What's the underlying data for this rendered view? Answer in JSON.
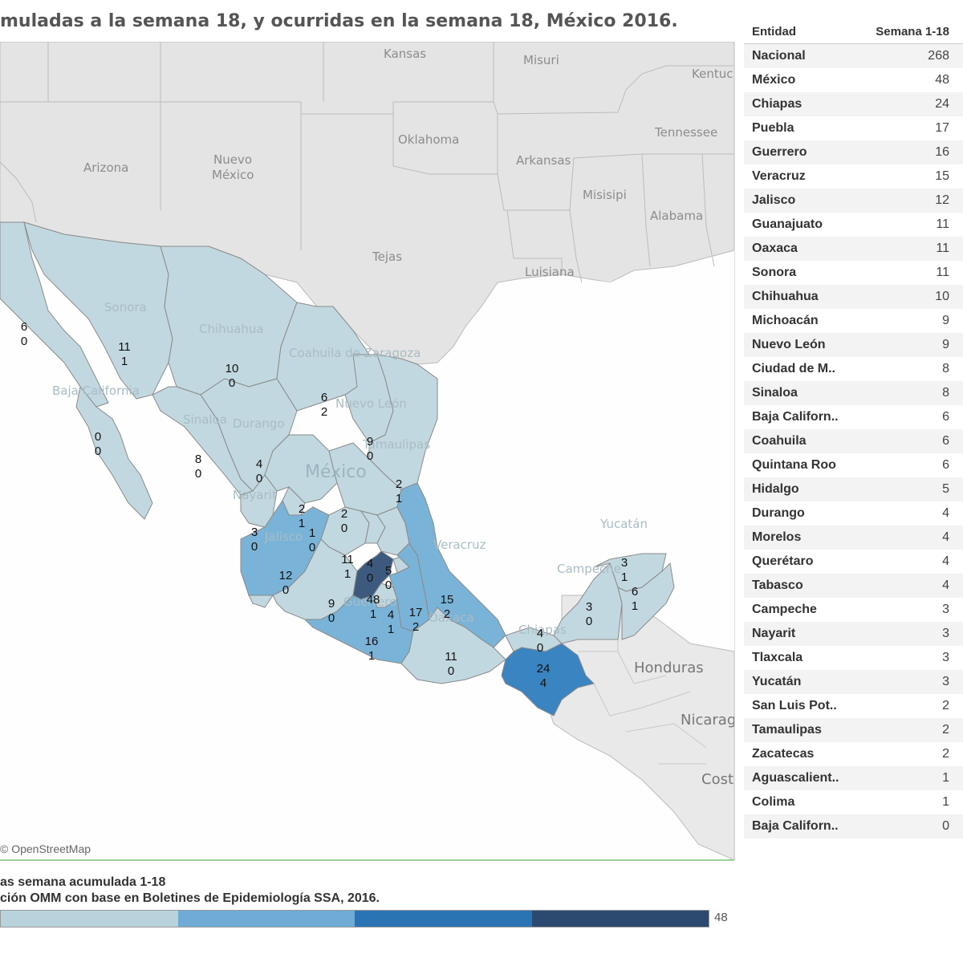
{
  "title": "muladas a la semana 18, y ocurridas en la semana 18, México 2016.",
  "map": {
    "attribution": "© OpenStreetMap",
    "place_labels": {
      "kansas": "Kansas",
      "misuri": "Misuri",
      "kentucky": "Kentuc",
      "oklahoma": "Oklahoma",
      "tennessee": "Tennessee",
      "arkansas": "Arkansas",
      "arizona": "Arizona",
      "nuevo_mexico_1": "Nuevo",
      "nuevo_mexico_2": "México",
      "misisipi": "Misisipi",
      "alabama": "Alabama",
      "tejas": "Tejas",
      "luisiana": "Luisiana",
      "honduras": "Honduras",
      "nicaragua": "Nicarag",
      "costa_rica": "Cost",
      "mexico": "México",
      "baja_california": "Baja California",
      "sonora": "Sonora",
      "chihuahua": "Chihuahua",
      "coahuila": "Coahuila de Zaragoza",
      "nuevo_leon": "Nuevo León",
      "tamaulipas": "Tamaulipas",
      "sinaloa": "Sinaloa",
      "durango": "Durango",
      "nayarit": "Nayarit",
      "jalisco": "Jalisco",
      "guerrero": "Guerrero",
      "oaxaca": "Oaxaca",
      "chiapas": "Chiapas",
      "veracruz": "Veracruz",
      "campeche": "Campeche",
      "yucatan": "Yucatán"
    },
    "state_labels": [
      {
        "state": "Baja California",
        "acc": "6",
        "week": "0"
      },
      {
        "state": "Sonora",
        "acc": "11",
        "week": "1"
      },
      {
        "state": "Chihuahua",
        "acc": "10",
        "week": "0"
      },
      {
        "state": "Coahuila",
        "acc": "6",
        "week": "2"
      },
      {
        "state": "Baja California Sur",
        "acc": "0",
        "week": "0"
      },
      {
        "state": "Nuevo León",
        "acc": "9",
        "week": "0"
      },
      {
        "state": "Sinaloa",
        "acc": "8",
        "week": "0"
      },
      {
        "state": "Durango",
        "acc": "4",
        "week": "0"
      },
      {
        "state": "Tamaulipas",
        "acc": "2",
        "week": "1"
      },
      {
        "state": "Zacatecas",
        "acc": "2",
        "week": "1"
      },
      {
        "state": "San Luis Potosí",
        "acc": "2",
        "week": "0"
      },
      {
        "state": "Aguascalientes",
        "acc": "1",
        "week": "0"
      },
      {
        "state": "Nayarit",
        "acc": "3",
        "week": "0"
      },
      {
        "state": "Guanajuato",
        "acc": "11",
        "week": "1"
      },
      {
        "state": "Querétaro",
        "acc": "4",
        "week": "0"
      },
      {
        "state": "Hidalgo",
        "acc": "5",
        "week": "0"
      },
      {
        "state": "Jalisco",
        "acc": "12",
        "week": "0"
      },
      {
        "state": "México",
        "acc": "48",
        "week": "1"
      },
      {
        "state": "Morelos",
        "acc": "4",
        "week": "1"
      },
      {
        "state": "Puebla",
        "acc": "17",
        "week": "2"
      },
      {
        "state": "Veracruz",
        "acc": "15",
        "week": "2"
      },
      {
        "state": "Michoacán",
        "acc": "9",
        "week": "0"
      },
      {
        "state": "Guerrero",
        "acc": "16",
        "week": "1"
      },
      {
        "state": "Oaxaca",
        "acc": "11",
        "week": "0"
      },
      {
        "state": "Tabasco",
        "acc": "4",
        "week": "0"
      },
      {
        "state": "Chiapas",
        "acc": "24",
        "week": "4"
      },
      {
        "state": "Campeche",
        "acc": "3",
        "week": "0"
      },
      {
        "state": "Yucatán",
        "acc": "3",
        "week": "1"
      },
      {
        "state": "Quintana Roo",
        "acc": "6",
        "week": "1"
      }
    ]
  },
  "table": {
    "header_entity": "Entidad",
    "header_value": "Semana 1-18",
    "rows": [
      {
        "name": "Nacional",
        "value": "268"
      },
      {
        "name": "México",
        "value": "48"
      },
      {
        "name": "Chiapas",
        "value": "24"
      },
      {
        "name": "Puebla",
        "value": "17"
      },
      {
        "name": "Guerrero",
        "value": "16"
      },
      {
        "name": "Veracruz",
        "value": "15"
      },
      {
        "name": "Jalisco",
        "value": "12"
      },
      {
        "name": "Guanajuato",
        "value": "11"
      },
      {
        "name": "Oaxaca",
        "value": "11"
      },
      {
        "name": "Sonora",
        "value": "11"
      },
      {
        "name": "Chihuahua",
        "value": "10"
      },
      {
        "name": "Michoacán",
        "value": "9"
      },
      {
        "name": "Nuevo León",
        "value": "9"
      },
      {
        "name": "Ciudad de M..",
        "value": "8"
      },
      {
        "name": "Sinaloa",
        "value": "8"
      },
      {
        "name": "Baja Californ..",
        "value": "6"
      },
      {
        "name": "Coahuila",
        "value": "6"
      },
      {
        "name": "Quintana Roo",
        "value": "6"
      },
      {
        "name": "Hidalgo",
        "value": "5"
      },
      {
        "name": "Durango",
        "value": "4"
      },
      {
        "name": "Morelos",
        "value": "4"
      },
      {
        "name": "Querétaro",
        "value": "4"
      },
      {
        "name": "Tabasco",
        "value": "4"
      },
      {
        "name": "Campeche",
        "value": "3"
      },
      {
        "name": "Nayarit",
        "value": "3"
      },
      {
        "name": "Tlaxcala",
        "value": "3"
      },
      {
        "name": "Yucatán",
        "value": "3"
      },
      {
        "name": "San Luis Pot..",
        "value": "2"
      },
      {
        "name": "Tamaulipas",
        "value": "2"
      },
      {
        "name": "Zacatecas",
        "value": "2"
      },
      {
        "name": "Aguascalient..",
        "value": "1"
      },
      {
        "name": "Colima",
        "value": "1"
      },
      {
        "name": "Baja Californ..",
        "value": "0"
      }
    ]
  },
  "legend": {
    "title": "as semana acumulada 1-18",
    "subtitle": "ción OMM con base en Boletines de Epidemiología SSA, 2016.",
    "max_label": "48",
    "colors": [
      "#b9d3dc",
      "#6fabd5",
      "#2b74b3",
      "#2c4a70"
    ]
  },
  "colors": {
    "land_us": "#e4e4e4",
    "water": "#fefefe",
    "state_low": "#c2d8e0",
    "state_mid": "#7ab3d8",
    "state_high": "#3a84c1",
    "state_max": "#3d5a7e",
    "central_america": "#e9e9e9"
  }
}
